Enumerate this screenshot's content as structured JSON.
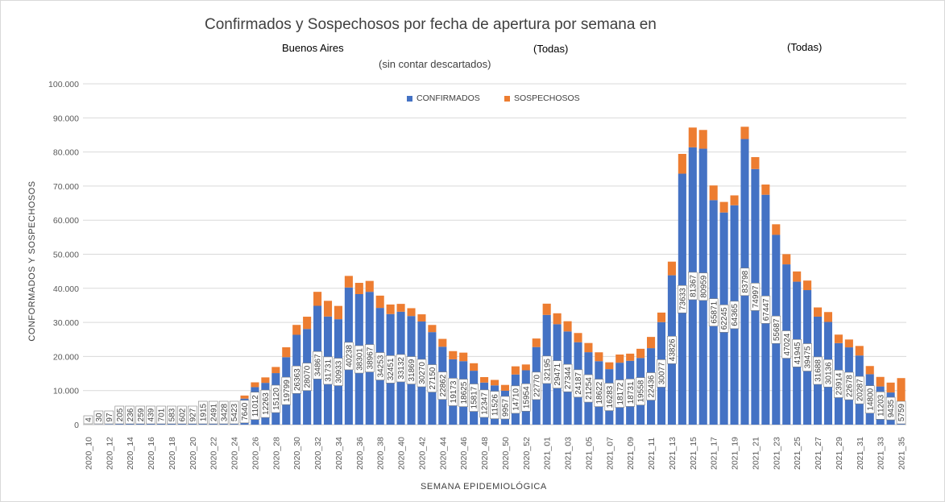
{
  "chart_data": {
    "type": "bar",
    "stacked": true,
    "title": "Confirmados y Sospechosos por fecha de apertura por semana en",
    "subtitle_parts": [
      "Buenos Aires",
      "(Todas)",
      "(Todas)",
      "(sin contar descartados)"
    ],
    "xlabel": "SEMANA EPIDEMIOLÓGICA",
    "ylabel": "CONFORMADOS Y SOSPECHOSOS",
    "ylim": [
      0,
      100000
    ],
    "yticks": [
      "0",
      "10.000",
      "20.000",
      "30.000",
      "40.000",
      "50.000",
      "60.000",
      "70.000",
      "80.000",
      "90.000",
      "100.000"
    ],
    "grid": true,
    "legend_position": "top",
    "categories": [
      "2020_10",
      "2020_11",
      "2020_12",
      "2020_13",
      "2020_14",
      "2020_15",
      "2020_16",
      "2020_17",
      "2020_18",
      "2020_19",
      "2020_20",
      "2020_21",
      "2020_22",
      "2020_23",
      "2020_24",
      "2020_25",
      "2020_26",
      "2020_27",
      "2020_28",
      "2020_29",
      "2020_30",
      "2020_31",
      "2020_32",
      "2020_33",
      "2020_34",
      "2020_35",
      "2020_36",
      "2020_37",
      "2020_38",
      "2020_39",
      "2020_40",
      "2020_41",
      "2020_42",
      "2020_43",
      "2020_44",
      "2020_45",
      "2020_46",
      "2020_47",
      "2020_48",
      "2020_49",
      "2020_50",
      "2020_51",
      "2020_52",
      "2020_53",
      "2021_01",
      "2021_02",
      "2021_03",
      "2021_04",
      "2021_05",
      "2021_06",
      "2021_07",
      "2021_08",
      "2021_09",
      "2021_10",
      "2021_11",
      "2021_12",
      "2021_13",
      "2021_14",
      "2021_15",
      "2021_16",
      "2021_17",
      "2021_18",
      "2021_19",
      "2021_20",
      "2021_21",
      "2021_22",
      "2021_23",
      "2021_24",
      "2021_25",
      "2021_26",
      "2021_27",
      "2021_28",
      "2021_29",
      "2021_30",
      "2021_31",
      "2021_32",
      "2021_33",
      "2021_34",
      "2021_35"
    ],
    "tick_labels": [
      "2020_10",
      "",
      "2020_12",
      "",
      "2020_14",
      "",
      "2020_16",
      "",
      "2020_18",
      "",
      "2020_20",
      "",
      "2020_22",
      "",
      "2020_24",
      "",
      "2020_26",
      "",
      "2020_28",
      "",
      "2020_30",
      "",
      "2020_32",
      "",
      "2020_34",
      "",
      "2020_36",
      "",
      "2020_38",
      "",
      "2020_40",
      "",
      "2020_42",
      "",
      "2020_44",
      "",
      "2020_46",
      "",
      "2020_48",
      "",
      "2020_50",
      "",
      "2020_52",
      "",
      "2021_01",
      "",
      "2021_03",
      "",
      "2021_05",
      "",
      "2021_07",
      "",
      "2021_09",
      "",
      "2021_11",
      "",
      "2021_13",
      "",
      "2021_15",
      "",
      "2021_17",
      "",
      "2021_19",
      "",
      "2021_21",
      "",
      "2021_23",
      "",
      "2021_25",
      "",
      "2021_27",
      "",
      "2021_29",
      "",
      "2021_31",
      "",
      "2021_33",
      "",
      "2021_35"
    ],
    "data_labels": [
      "4",
      "30",
      "97",
      "205",
      "236",
      "259",
      "439",
      "701",
      "583",
      "602",
      "927",
      "1915",
      "2491",
      "3428",
      "5423",
      "7640",
      "11012",
      "12263",
      "15120",
      "19799",
      "26363",
      "28070",
      "34867",
      "31731",
      "30933",
      "40238",
      "38301",
      "38967",
      "34253",
      "32451",
      "33132",
      "31869",
      "30270",
      "27150",
      "22862",
      "19173",
      "18625",
      "15817",
      "12347",
      "11526",
      "9957",
      "14710",
      "15954",
      "22770",
      "32195",
      "29471",
      "27344",
      "24187",
      "21254",
      "18622",
      "16283",
      "18172",
      "18731",
      "19558",
      "22436",
      "30077",
      "43826",
      "73633",
      "81367",
      "80959",
      "65871",
      "62245",
      "64365",
      "83798",
      "74997",
      "67447",
      "55687",
      "47024",
      "41945",
      "39475",
      "31688",
      "30136",
      "23914",
      "22678",
      "20287",
      "14800",
      "11203",
      "9435",
      "5759"
    ],
    "series": [
      {
        "name": "CONFIRMADOS",
        "color": "#4472C4",
        "values": [
          4,
          30,
          97,
          205,
          236,
          259,
          439,
          701,
          583,
          602,
          927,
          1915,
          2491,
          3428,
          5423,
          7640,
          11012,
          12263,
          15120,
          19799,
          26363,
          28070,
          34867,
          31731,
          30933,
          40238,
          38301,
          38967,
          34253,
          32451,
          33132,
          31869,
          30270,
          27150,
          22862,
          19173,
          18625,
          15817,
          12347,
          11526,
          9957,
          14710,
          15954,
          22770,
          32195,
          29471,
          27344,
          24187,
          21254,
          18622,
          16283,
          18172,
          18731,
          19558,
          22436,
          30077,
          43826,
          73633,
          81367,
          80959,
          65871,
          62245,
          64365,
          83798,
          74997,
          67447,
          55687,
          47024,
          41945,
          39475,
          31688,
          30136,
          23914,
          22678,
          20287,
          14800,
          11203,
          9435,
          5759
        ]
      },
      {
        "name": "SOSPECHOSOS",
        "color": "#ED7D31",
        "values": [
          0,
          0,
          0,
          0,
          0,
          0,
          0,
          0,
          0,
          0,
          0,
          0,
          0,
          0,
          500,
          900,
          1400,
          1600,
          1800,
          2900,
          2900,
          3600,
          4100,
          4600,
          3900,
          3400,
          3300,
          3200,
          3600,
          2800,
          2300,
          2300,
          2100,
          2100,
          2300,
          2400,
          2500,
          2200,
          1600,
          1600,
          1700,
          2400,
          1700,
          2500,
          3300,
          3200,
          3000,
          2700,
          2700,
          2600,
          2000,
          2400,
          2100,
          2700,
          3300,
          2800,
          4000,
          5800,
          5800,
          5500,
          4300,
          3100,
          2900,
          3600,
          3500,
          3000,
          3100,
          3000,
          3000,
          2800,
          2700,
          2900,
          2500,
          2300,
          2800,
          2400,
          2800,
          2900,
          7900
        ]
      }
    ]
  }
}
